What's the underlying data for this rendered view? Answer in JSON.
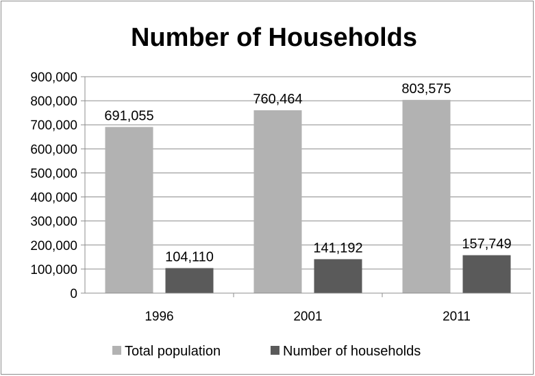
{
  "chart_data": {
    "type": "bar",
    "title": "Number of Households",
    "categories": [
      "1996",
      "2001",
      "2011"
    ],
    "series": [
      {
        "name": "Total population",
        "values": [
          691055,
          760464,
          803575
        ],
        "color": "#b2b2b2"
      },
      {
        "name": "Number of households",
        "values": [
          104110,
          141192,
          157749
        ],
        "color": "#5a5a5a"
      }
    ],
    "data_labels": [
      [
        "691,055",
        "760,464",
        "803,575"
      ],
      [
        "104,110",
        "141,192",
        "157,749"
      ]
    ],
    "ylim": [
      0,
      900000
    ],
    "yticks": [
      0,
      100000,
      200000,
      300000,
      400000,
      500000,
      600000,
      700000,
      800000,
      900000
    ],
    "ytick_labels": [
      "0",
      "100,000",
      "200,000",
      "300,000",
      "400,000",
      "500,000",
      "600,000",
      "700,000",
      "800,000",
      "900,000"
    ],
    "xlabel": "",
    "ylabel": "",
    "grid": true,
    "legend_position": "bottom"
  }
}
